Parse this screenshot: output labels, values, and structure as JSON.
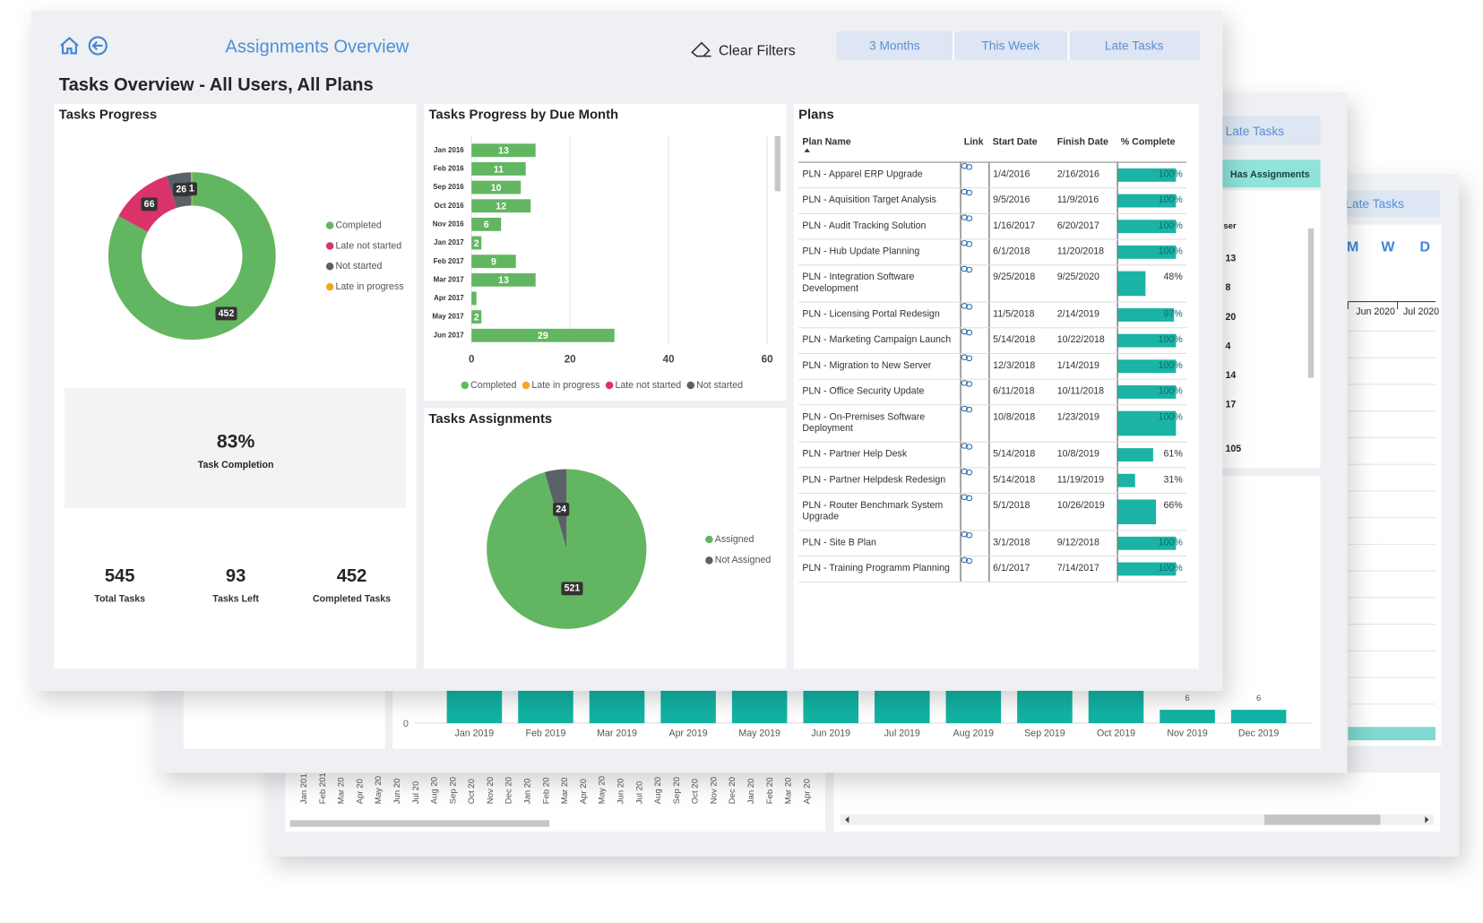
{
  "header": {
    "title": "Assignments Overview",
    "clear_filters": "Clear Filters",
    "filters": [
      "3 Months",
      "This Week",
      "Late Tasks"
    ],
    "page_title": "Tasks Overview - All Users, All Plans"
  },
  "chart_data": [
    {
      "type": "donut",
      "title": "Tasks Progress",
      "categories": [
        "Completed",
        "Late not started",
        "Not started",
        "Late in progress"
      ],
      "values": [
        452,
        66,
        26,
        1
      ],
      "colors": [
        "#63b661",
        "#d9336a",
        "#5a6168",
        "#f5a623"
      ],
      "legend": "right"
    },
    {
      "type": "hbar",
      "title": "Tasks Progress by Due Month",
      "categories": [
        "Jan 2016",
        "Feb 2016",
        "Sep 2016",
        "Oct 2016",
        "Nov 2016",
        "Jan 2017",
        "Feb 2017",
        "Mar 2017",
        "Apr 2017",
        "May 2017",
        "Jun 2017"
      ],
      "series": [
        {
          "name": "Completed",
          "color": "#63b661",
          "values": [
            13,
            11,
            10,
            12,
            6,
            2,
            9,
            13,
            1,
            2,
            29
          ],
          "value_labels": [
            "13",
            "11",
            "10",
            "12",
            "6",
            "2",
            "9",
            "13",
            null,
            "2",
            "29"
          ]
        },
        {
          "name": "Late in progress",
          "color": "#f5a623",
          "values": [
            null,
            null,
            null,
            null,
            null,
            null,
            null,
            null,
            null,
            null,
            null
          ]
        },
        {
          "name": "Late not started",
          "color": "#d9336a",
          "values": [
            null,
            null,
            null,
            null,
            null,
            null,
            null,
            null,
            null,
            null,
            null
          ]
        },
        {
          "name": "Not started",
          "color": "#5a6168",
          "values": [
            null,
            null,
            null,
            null,
            null,
            null,
            null,
            null,
            null,
            null,
            null
          ]
        }
      ],
      "xlim": [
        0,
        60
      ],
      "xticks": [
        0,
        20,
        40,
        60
      ],
      "grid": true,
      "legend": "bottom"
    },
    {
      "type": "pie",
      "title": "Tasks Assignments",
      "categories": [
        "Assigned",
        "Not Assigned"
      ],
      "values": [
        521,
        24
      ],
      "colors": [
        "#63b661",
        "#5a6168"
      ],
      "legend": "right"
    }
  ],
  "kpis": {
    "completion": {
      "value": "83%",
      "label": "Task Completion"
    },
    "items": [
      {
        "value": 545,
        "label": "Total Tasks"
      },
      {
        "value": 93,
        "label": "Tasks Left"
      },
      {
        "value": 452,
        "label": "Completed Tasks"
      }
    ]
  },
  "plans": {
    "title": "Plans",
    "columns": [
      "Plan Name",
      "Link",
      "Start Date",
      "Finish Date",
      "% Complete"
    ],
    "bar_color": "#1ab3a6",
    "rows": [
      {
        "name": "PLN - Apparel ERP Upgrade",
        "start": "1/4/2016",
        "finish": "2/16/2016",
        "complete": {
          "value": 100,
          "label": "100%"
        }
      },
      {
        "name": "PLN - Aquisition Target Analysis",
        "start": "9/5/2016",
        "finish": "11/9/2016",
        "complete": {
          "value": 100,
          "label": "100%"
        }
      },
      {
        "name": "PLN - Audit Tracking Solution",
        "start": "1/16/2017",
        "finish": "6/20/2017",
        "complete": {
          "value": 100,
          "label": "100%"
        }
      },
      {
        "name": "PLN - Hub Update Planning",
        "start": "6/1/2018",
        "finish": "11/20/2018",
        "complete": {
          "value": 100,
          "label": "100%"
        }
      },
      {
        "name": "PLN - Integration Software Development",
        "start": "9/25/2018",
        "finish": "9/25/2020",
        "complete": {
          "value": 48,
          "label": "48%"
        }
      },
      {
        "name": "PLN - Licensing Portal Redesign",
        "start": "11/5/2018",
        "finish": "2/14/2019",
        "complete": {
          "value": 97,
          "label": "97%"
        }
      },
      {
        "name": "PLN - Marketing Campaign Launch",
        "start": "5/14/2018",
        "finish": "10/22/2018",
        "complete": {
          "value": 100,
          "label": "100%"
        }
      },
      {
        "name": "PLN - Migration to New Server",
        "start": "12/3/2018",
        "finish": "1/14/2019",
        "complete": {
          "value": 100,
          "label": "100%"
        }
      },
      {
        "name": "PLN - Office Security Update",
        "start": "6/11/2018",
        "finish": "10/11/2018",
        "complete": {
          "value": 100,
          "label": "100%"
        }
      },
      {
        "name": "PLN - On-Premises Software Deployment",
        "start": "10/8/2018",
        "finish": "1/23/2019",
        "complete": {
          "value": 100,
          "label": "100%"
        }
      },
      {
        "name": "PLN - Partner Help Desk",
        "start": "5/14/2018",
        "finish": "10/8/2019",
        "complete": {
          "value": 61,
          "label": "61%"
        }
      },
      {
        "name": "PLN - Partner Helpdesk Redesign",
        "start": "5/14/2018",
        "finish": "11/19/2019",
        "complete": {
          "value": 31,
          "label": "31%"
        }
      },
      {
        "name": "PLN - Router Benchmark System Upgrade",
        "start": "5/1/2018",
        "finish": "10/26/2019",
        "complete": {
          "value": 66,
          "label": "66%"
        }
      },
      {
        "name": "PLN - Site B Plan",
        "start": "3/1/2018",
        "finish": "9/12/2018",
        "complete": {
          "value": 100,
          "label": "100%"
        }
      },
      {
        "name": "PLN - Training Programm Planning",
        "start": "6/1/2017",
        "finish": "7/14/2017",
        "complete": {
          "value": 100,
          "label": "100%"
        }
      }
    ]
  },
  "background": {
    "window2": {
      "button": "Late Tasks",
      "toggle": "Has Assignments",
      "column_header": "ser",
      "column_values": [
        13,
        8,
        20,
        4,
        14,
        17,
        105
      ],
      "chart": {
        "zero": "0",
        "months": [
          "Jan 2019",
          "Feb 2019",
          "Mar 2019",
          "Apr 2019",
          "May 2019",
          "Jun 2019",
          "Jul 2019",
          "Aug 2019",
          "Sep 2019",
          "Oct 2019",
          "Nov 2019",
          "Dec 2019"
        ],
        "value_labels": [
          "6",
          "6"
        ]
      }
    },
    "window3": {
      "button": "Late Tasks",
      "scale_buttons": [
        "M",
        "W",
        "D"
      ],
      "timeline": [
        "Jun 2020",
        "Jul 2020"
      ],
      "axis_months": [
        "Jan 201",
        "Feb 201",
        "Mar 20",
        "Apr 20",
        "May 20",
        "Jun 20",
        "Jul 20",
        "Aug 20",
        "Sep 20",
        "Oct 20",
        "Nov 20",
        "Dec 20",
        "Jan 20",
        "Feb 20",
        "Mar 20",
        "Apr 20",
        "May 20",
        "Jun 20",
        "Jul 20",
        "Aug 20",
        "Sep 20",
        "Oct 20",
        "Nov 20",
        "Dec 20",
        "Jan 20",
        "Feb 20",
        "Mar 20",
        "Apr 20"
      ]
    }
  }
}
